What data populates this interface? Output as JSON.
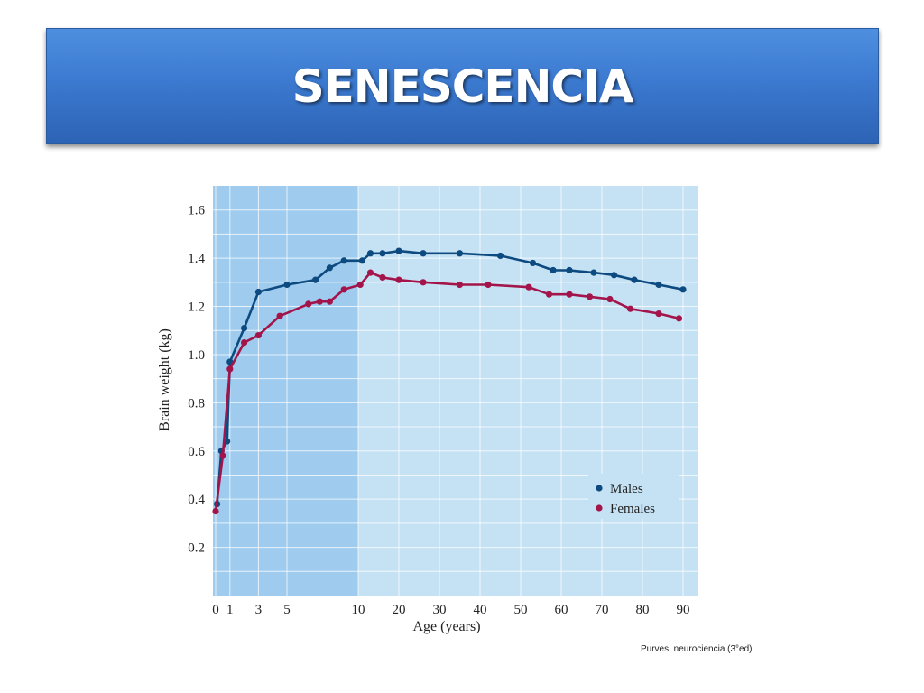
{
  "slide": {
    "title": "SENESCENCIA",
    "citation": "Purves, neurociencia (3°ed)"
  },
  "colors": {
    "banner": "#3b7ad0",
    "plot_dark": "#9ecbee",
    "plot_light": "#c5e2f5",
    "males": "#0d4a80",
    "females": "#a3154a"
  },
  "chart_data": {
    "type": "line",
    "title": "",
    "xlabel": "Age (years)",
    "ylabel": "Brain weight (kg)",
    "ylim": [
      0,
      1.7
    ],
    "yticks": [
      0.2,
      0.4,
      0.6,
      0.8,
      1.0,
      1.2,
      1.4,
      1.6
    ],
    "xticks": [
      "0",
      "1",
      "3",
      "5",
      "10",
      "20",
      "30",
      "40",
      "50",
      "60",
      "70",
      "80",
      "90"
    ],
    "x_scale": "piecewise: 0-10 years expanded (shaded dark band), 10-90 years linear",
    "grid": true,
    "legend_position": "lower-right",
    "series": [
      {
        "name": "Males",
        "color": "#0d4a80",
        "x": [
          0.1,
          0.4,
          0.8,
          1.0,
          2.0,
          3.0,
          5.0,
          7.0,
          8.0,
          9.0,
          11.0,
          13.0,
          16.0,
          20.0,
          26.0,
          35.0,
          45.0,
          53.0,
          58.0,
          62.0,
          68.0,
          73.0,
          78.0,
          84.0,
          90.0
        ],
        "y": [
          0.38,
          0.6,
          0.64,
          0.97,
          1.11,
          1.26,
          1.29,
          1.31,
          1.36,
          1.39,
          1.39,
          1.42,
          1.42,
          1.43,
          1.42,
          1.42,
          1.41,
          1.38,
          1.35,
          1.35,
          1.34,
          1.33,
          1.31,
          1.29,
          1.27
        ]
      },
      {
        "name": "Females",
        "color": "#a3154a",
        "x": [
          0.0,
          0.5,
          1.0,
          2.0,
          3.0,
          4.5,
          6.5,
          7.3,
          8.0,
          9.0,
          10.5,
          13.0,
          16.0,
          20.0,
          26.0,
          35.0,
          42.0,
          52.0,
          57.0,
          62.0,
          67.0,
          72.0,
          77.0,
          84.0,
          89.0
        ],
        "y": [
          0.35,
          0.58,
          0.94,
          1.05,
          1.08,
          1.16,
          1.21,
          1.22,
          1.22,
          1.27,
          1.29,
          1.34,
          1.32,
          1.31,
          1.3,
          1.29,
          1.29,
          1.28,
          1.25,
          1.25,
          1.24,
          1.23,
          1.19,
          1.17,
          1.15
        ]
      }
    ]
  }
}
